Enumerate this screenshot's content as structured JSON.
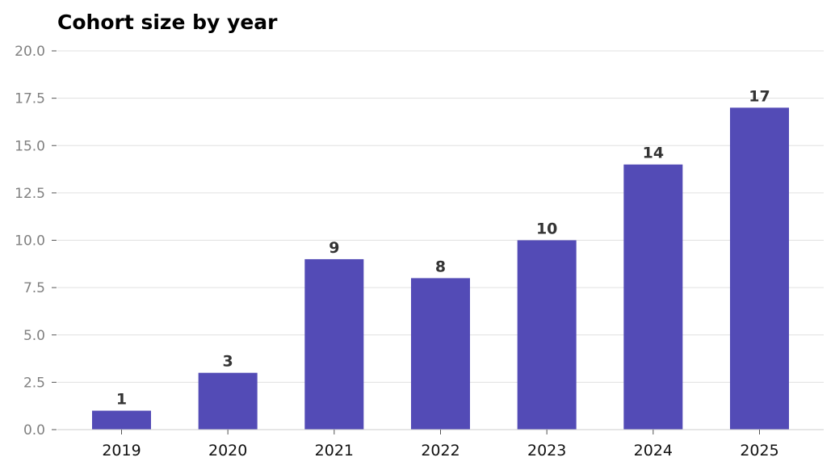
{
  "chart_data": {
    "type": "bar",
    "title": "Cohort size by year",
    "xlabel": "",
    "ylabel": "",
    "categories": [
      "2019",
      "2020",
      "2021",
      "2022",
      "2023",
      "2024",
      "2025"
    ],
    "values": [
      1,
      3,
      9,
      8,
      10,
      14,
      17
    ],
    "ylim": [
      0,
      20
    ],
    "yticks": [
      "0.0",
      "2.5",
      "5.0",
      "7.5",
      "10.0",
      "12.5",
      "15.0",
      "17.5",
      "20.0"
    ],
    "grid": "horizontal",
    "legend": "none",
    "bar_color": "#534bb6",
    "grid_color": "#e0e0e0"
  }
}
